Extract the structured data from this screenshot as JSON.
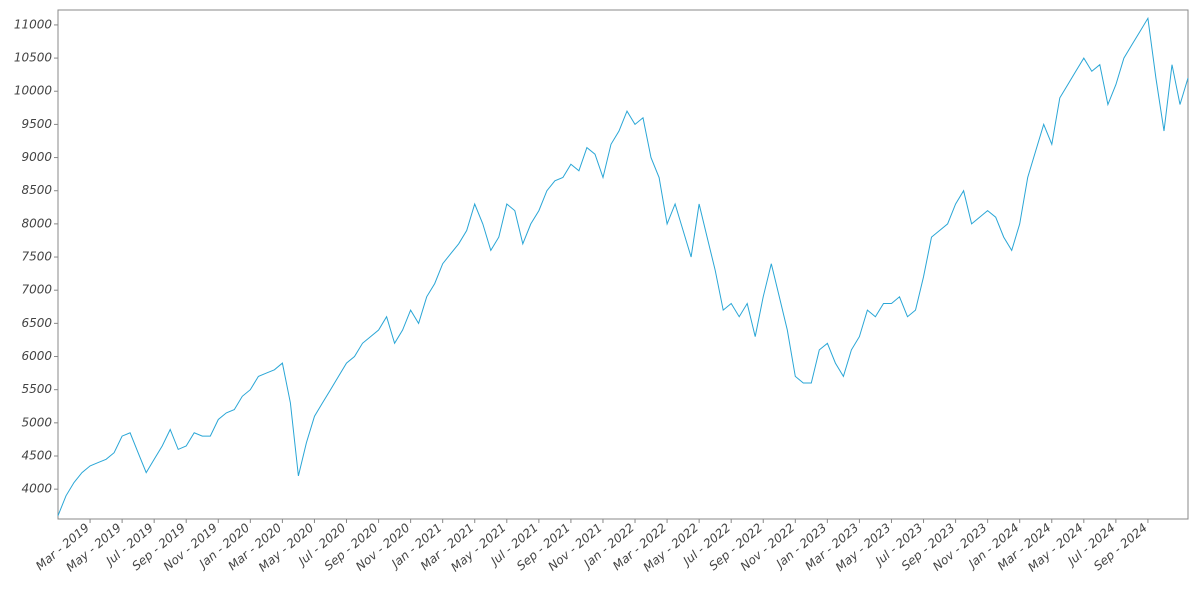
{
  "chart_data": {
    "type": "line",
    "categories": [
      null,
      null,
      null,
      null,
      "Mar - 2019",
      null,
      null,
      null,
      "May - 2019",
      null,
      null,
      null,
      "Jul - 2019",
      null,
      null,
      null,
      "Sep - 2019",
      null,
      null,
      null,
      "Nov - 2019",
      null,
      null,
      null,
      "Jan - 2020",
      null,
      null,
      null,
      "Mar - 2020",
      null,
      null,
      null,
      "May - 2020",
      null,
      null,
      null,
      "Jul - 2020",
      null,
      null,
      null,
      "Sep - 2020",
      null,
      null,
      null,
      "Nov - 2020",
      null,
      null,
      null,
      "Jan - 2021",
      null,
      null,
      null,
      "Mar - 2021",
      null,
      null,
      null,
      "May - 2021",
      null,
      null,
      null,
      "Jul - 2021",
      null,
      null,
      null,
      "Sep - 2021",
      null,
      null,
      null,
      "Nov - 2021",
      null,
      null,
      null,
      "Jan - 2022",
      null,
      null,
      null,
      "Mar - 2022",
      null,
      null,
      null,
      "May - 2022",
      null,
      null,
      null,
      "Jul - 2022",
      null,
      null,
      null,
      "Sep - 2022",
      null,
      null,
      null,
      "Nov - 2022",
      null,
      null,
      null,
      "Jan - 2023",
      null,
      null,
      null,
      "Mar - 2023",
      null,
      null,
      null,
      "May - 2023",
      null,
      null,
      null,
      "Jul - 2023",
      null,
      null,
      null,
      "Sep - 2023",
      null,
      null,
      null,
      "Nov - 2023",
      null,
      null,
      null,
      "Jan - 2024",
      null,
      null,
      null,
      "Mar - 2024",
      null,
      null,
      null,
      "May - 2024",
      null,
      null,
      null,
      "Jul - 2024",
      null,
      null,
      null,
      "Sep - 2024",
      null,
      null,
      null,
      null,
      null
    ],
    "values": [
      3600,
      3900,
      4100,
      4250,
      4350,
      4400,
      4450,
      4550,
      4800,
      4850,
      4550,
      4250,
      4450,
      4650,
      4900,
      4600,
      4650,
      4850,
      4800,
      4800,
      5050,
      5150,
      5200,
      5400,
      5500,
      5700,
      5750,
      5800,
      5900,
      5300,
      4200,
      4700,
      5100,
      5300,
      5500,
      5700,
      5900,
      6000,
      6200,
      6300,
      6400,
      6600,
      6200,
      6400,
      6700,
      6500,
      6900,
      7100,
      7400,
      7550,
      7700,
      7900,
      8300,
      8000,
      7600,
      7800,
      8300,
      8200,
      7700,
      8000,
      8200,
      8500,
      8650,
      8700,
      8900,
      8800,
      9150,
      9050,
      8700,
      9200,
      9400,
      9700,
      9500,
      9600,
      9000,
      8700,
      8000,
      8300,
      7900,
      7500,
      8300,
      7800,
      7300,
      6700,
      6800,
      6600,
      6800,
      6300,
      6900,
      7400,
      6900,
      6400,
      5700,
      5600,
      5600,
      6100,
      6200,
      5900,
      5700,
      6100,
      6300,
      6700,
      6600,
      6800,
      6800,
      6900,
      6600,
      6700,
      7200,
      7800,
      7900,
      8000,
      8300,
      8500,
      8000,
      8100,
      8200,
      8100,
      7800,
      7600,
      8000,
      8700,
      9100,
      9500,
      9200,
      9900,
      10100,
      10300,
      10500,
      10300,
      10400,
      9800,
      10100,
      10500,
      10700,
      10900,
      11100,
      10200,
      9400,
      10400,
      9800,
      10200
    ],
    "color": "#2aa6d6",
    "ylim": [
      3550,
      11225
    ],
    "yticks": [
      4000,
      4500,
      5000,
      5500,
      6000,
      6500,
      7000,
      7500,
      8000,
      8500,
      9000,
      9500,
      10000,
      10500,
      11000
    ]
  }
}
